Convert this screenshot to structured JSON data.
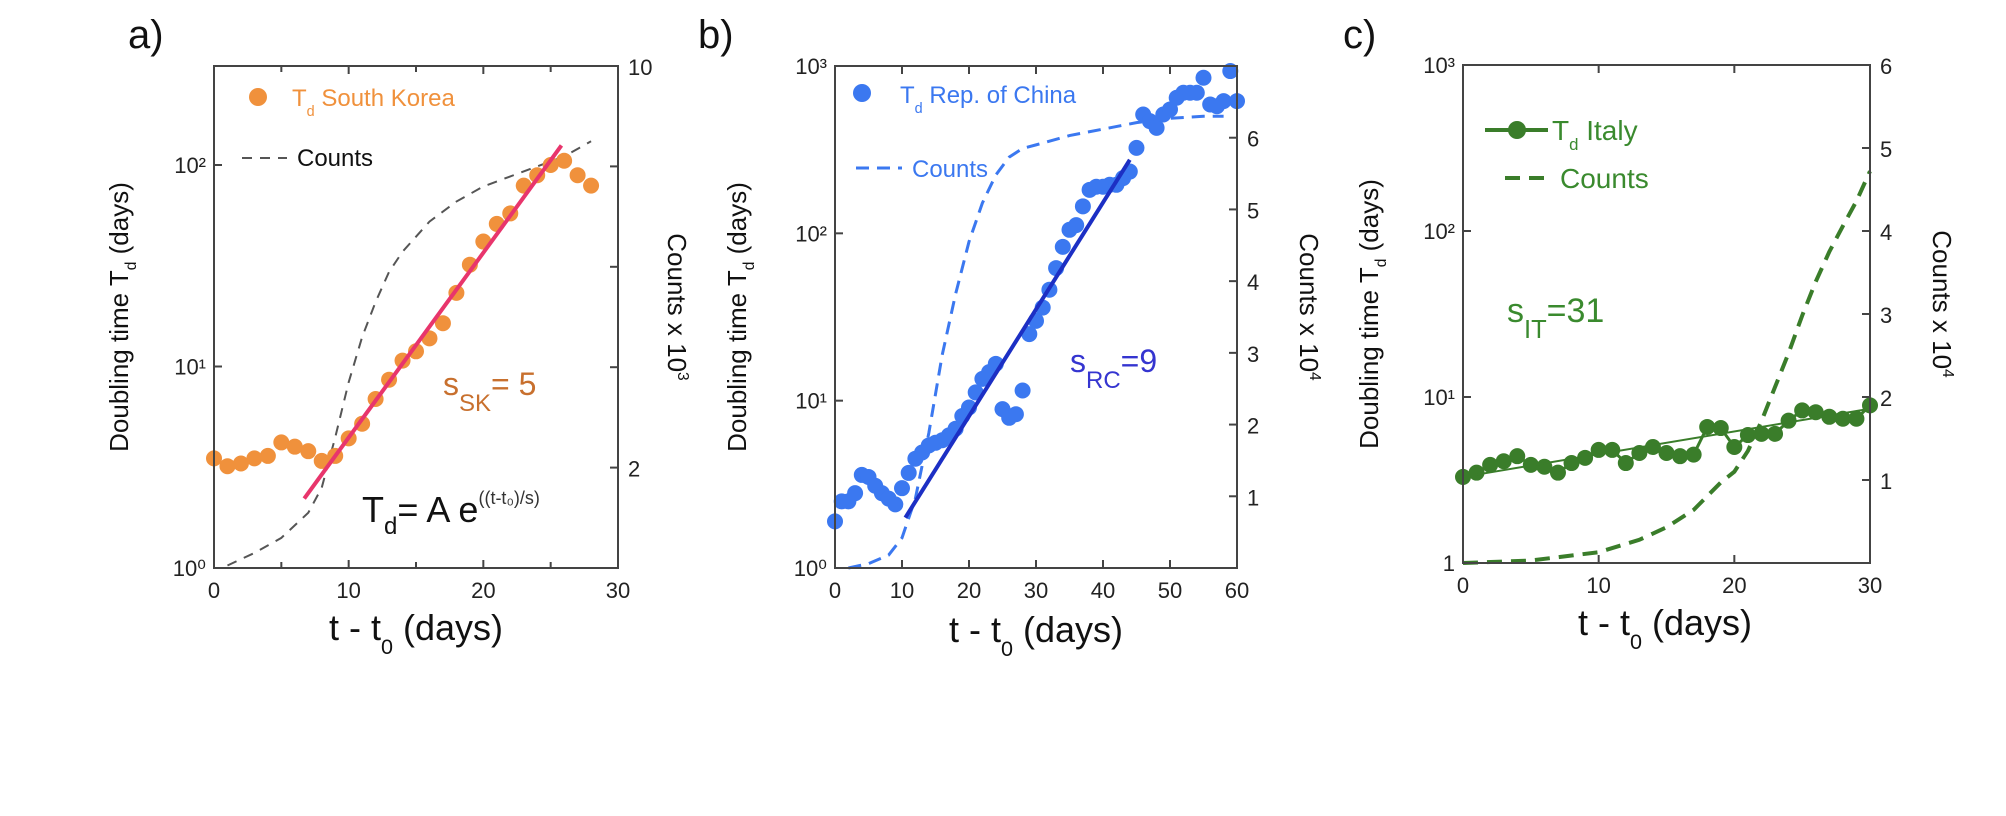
{
  "chart_data": [
    {
      "panel": "a)",
      "type": "scatter",
      "xlim": [
        0,
        30
      ],
      "ylim": [
        1,
        310
      ],
      "yscale": "log",
      "y2lim": [
        0,
        10
      ],
      "x_ticks": [
        {
          "v": 0,
          "label": "0"
        },
        {
          "v": 10,
          "label": "10"
        },
        {
          "v": 20,
          "label": "20"
        },
        {
          "v": 30,
          "label": "30"
        }
      ],
      "x_minor": [
        5,
        15,
        25
      ],
      "y_ticks": [
        {
          "v": 1,
          "label": "10⁰"
        },
        {
          "v": 10,
          "label": "10¹"
        },
        {
          "v": 100,
          "label": "10²"
        }
      ],
      "y2_ticks": [
        {
          "v": 2,
          "label": "2"
        },
        {
          "v": 10,
          "label": "10"
        }
      ],
      "y2_minor": [
        4,
        6,
        8
      ],
      "x_label": {
        "main": "t - t",
        "sub": "0",
        "rest": "  (days)"
      },
      "y_label": {
        "main": "Doubling time T",
        "sub": "d",
        "rest": " (days)"
      },
      "y2_label": {
        "main": "Counts x 10",
        "sup": "3"
      },
      "legend": {
        "td": {
          "main": "T",
          "sub": "d",
          "rest": "  South Korea"
        },
        "counts": "Counts"
      },
      "annotation": {
        "main": "s",
        "sub": "SK",
        "rest": "= 5"
      },
      "formula": {
        "main": "T",
        "sub": "d",
        "rest": "= A e",
        "exp": "((t-t₀)/s)"
      },
      "colors": {
        "points": "#f0913c",
        "fit": "#e8356c",
        "counts": "#555555",
        "text": "#f0913c",
        "annotation": "#c8702e"
      },
      "series": {
        "td": {
          "t": [
            0,
            1,
            2,
            3,
            4,
            5,
            6,
            7,
            8,
            9,
            10,
            11,
            12,
            13,
            14,
            15,
            16,
            17,
            18,
            19,
            20,
            21,
            22,
            23,
            24,
            25,
            26,
            27,
            28
          ],
          "values": [
            3.5,
            3.2,
            3.3,
            3.5,
            3.6,
            4.2,
            4.0,
            3.8,
            3.4,
            3.6,
            4.4,
            5.2,
            6.9,
            8.6,
            10.7,
            11.9,
            13.8,
            16.4,
            23.2,
            32,
            41.7,
            51,
            57.5,
            79,
            89,
            100,
            105,
            89,
            79
          ]
        },
        "fit": {
          "t": [
            6.7,
            25.8
          ],
          "values": [
            2.21,
            125
          ]
        },
        "counts": {
          "t": [
            1,
            3,
            5,
            7,
            8,
            9,
            10,
            11,
            12,
            13,
            14,
            15,
            16,
            18,
            20,
            22,
            24,
            26,
            28
          ],
          "values": [
            0.05,
            0.3,
            0.6,
            1.1,
            1.6,
            2.6,
            3.7,
            4.6,
            5.3,
            5.9,
            6.3,
            6.6,
            6.9,
            7.3,
            7.6,
            7.8,
            8.0,
            8.2,
            8.5
          ]
        }
      }
    },
    {
      "panel": "b)",
      "type": "scatter",
      "xlim": [
        0,
        60
      ],
      "ylim": [
        1,
        1000
      ],
      "yscale": "log",
      "y2lim": [
        0,
        7
      ],
      "x_ticks": [
        {
          "v": 0,
          "label": "0"
        },
        {
          "v": 10,
          "label": "10"
        },
        {
          "v": 20,
          "label": "20"
        },
        {
          "v": 30,
          "label": "30"
        },
        {
          "v": 40,
          "label": "40"
        },
        {
          "v": 50,
          "label": "50"
        },
        {
          "v": 60,
          "label": "60"
        }
      ],
      "x_minor": [],
      "y_ticks": [
        {
          "v": 1,
          "label": "10⁰"
        },
        {
          "v": 10,
          "label": "10¹"
        },
        {
          "v": 100,
          "label": "10²"
        },
        {
          "v": 1000,
          "label": "10³"
        }
      ],
      "y2_ticks": [
        {
          "v": 1,
          "label": "1"
        },
        {
          "v": 2,
          "label": "2"
        },
        {
          "v": 3,
          "label": "3"
        },
        {
          "v": 4,
          "label": "4"
        },
        {
          "v": 5,
          "label": "5"
        },
        {
          "v": 6,
          "label": "6"
        }
      ],
      "y2_minor": [],
      "x_label": {
        "main": "t - t",
        "sub": "0",
        "rest": "  (days)"
      },
      "y_label": {
        "main": "Doubling time T",
        "sub": "d",
        "rest": " (days)"
      },
      "y2_label": {
        "main": "Counts x 10",
        "sup": "4"
      },
      "legend": {
        "td": {
          "main": "T",
          "sub": "d",
          "rest": "  Rep. of China"
        },
        "counts": "Counts"
      },
      "annotation": {
        "main": "s",
        "sub": "RC",
        "rest": "=9"
      },
      "colors": {
        "points": "#3b78f0",
        "fit": "#1c2fc4",
        "counts": "#3b78f0",
        "text": "#3b78f0",
        "annotation": "#3535d0"
      },
      "series": {
        "td": {
          "t": [
            0,
            1,
            2,
            3,
            4,
            5,
            6,
            7,
            8,
            9,
            10,
            11,
            12,
            13,
            14,
            15,
            16,
            17,
            18,
            19,
            20,
            21,
            22,
            23,
            24,
            25,
            26,
            27,
            28,
            29,
            30,
            31,
            32,
            33,
            34,
            35,
            36,
            37,
            38,
            39,
            40,
            41,
            42,
            43,
            44,
            45,
            46,
            47,
            48,
            49,
            50,
            51,
            52,
            53,
            54,
            55,
            56,
            57,
            58,
            59,
            60
          ],
          "values": [
            1.9,
            2.5,
            2.5,
            2.8,
            3.6,
            3.5,
            3.1,
            2.8,
            2.6,
            2.4,
            3.0,
            3.7,
            4.5,
            4.9,
            5.4,
            5.6,
            5.8,
            6.2,
            6.8,
            8.1,
            9.1,
            11.2,
            13.5,
            14.8,
            16.6,
            8.9,
            7.9,
            8.3,
            11.5,
            25,
            30,
            36,
            46,
            62,
            83,
            105,
            112,
            145,
            182,
            190,
            190,
            195,
            195,
            214,
            234,
            324,
            513,
            468,
            427,
            513,
            550,
            646,
            692,
            692,
            692,
            851,
            589,
            575,
            617,
            933,
            617
          ]
        },
        "fit": {
          "t": [
            10.5,
            44
          ],
          "values": [
            2.0,
            275
          ]
        },
        "counts": {
          "t": [
            2,
            5,
            8,
            10,
            12,
            14,
            16,
            18,
            20,
            22,
            24,
            26,
            28,
            30,
            35,
            40,
            45,
            50,
            55,
            58
          ],
          "values": [
            0,
            0.06,
            0.18,
            0.42,
            0.97,
            1.88,
            2.97,
            3.82,
            4.55,
            5.09,
            5.48,
            5.73,
            5.85,
            5.9,
            6.03,
            6.12,
            6.21,
            6.27,
            6.3,
            6.3
          ]
        }
      }
    },
    {
      "panel": "c)",
      "type": "scatter",
      "xlim": [
        0,
        30
      ],
      "ylim": [
        1,
        1000
      ],
      "yscale": "log",
      "y2lim": [
        0,
        6
      ],
      "x_ticks": [
        {
          "v": 0,
          "label": "0"
        },
        {
          "v": 10,
          "label": "10"
        },
        {
          "v": 20,
          "label": "20"
        },
        {
          "v": 30,
          "label": "30"
        }
      ],
      "x_minor": [],
      "y_ticks": [
        {
          "v": 1,
          "label": "1"
        },
        {
          "v": 10,
          "label": "10¹"
        },
        {
          "v": 100,
          "label": "10²"
        },
        {
          "v": 1000,
          "label": "10³"
        }
      ],
      "y2_ticks": [
        {
          "v": 1,
          "label": "1"
        },
        {
          "v": 2,
          "label": "2"
        },
        {
          "v": 3,
          "label": "3"
        },
        {
          "v": 4,
          "label": "4"
        },
        {
          "v": 5,
          "label": "5"
        },
        {
          "v": 6,
          "label": "6"
        }
      ],
      "y2_minor": [],
      "x_label": {
        "main": "t - t",
        "sub": "0",
        "rest": "  (days)"
      },
      "y_label": {
        "main": "Doubling time T",
        "sub": "d",
        "rest": " (days)"
      },
      "y2_label": {
        "main": "Counts x 10",
        "sup": "4"
      },
      "legend": {
        "td": {
          "main": "T",
          "sub": "d",
          "rest": " Italy"
        },
        "counts": "Counts"
      },
      "annotation": {
        "main": "s",
        "sub": "IT",
        "rest": "=31"
      },
      "colors": {
        "points": "#3a7d2a",
        "fit": "#3a7d2a",
        "counts": "#3a7d2a",
        "text": "#3a8a2e",
        "annotation": "#3a8a2e"
      },
      "series": {
        "td": {
          "t": [
            0,
            1,
            2,
            3,
            4,
            5,
            6,
            7,
            8,
            9,
            10,
            11,
            12,
            13,
            14,
            15,
            16,
            17,
            18,
            19,
            20,
            21,
            22,
            23,
            24,
            25,
            26,
            27,
            28,
            29,
            30
          ],
          "values": [
            3.3,
            3.5,
            3.9,
            4.1,
            4.4,
            3.9,
            3.8,
            3.5,
            4.0,
            4.3,
            4.8,
            4.8,
            4.0,
            4.6,
            5.0,
            4.6,
            4.4,
            4.5,
            6.6,
            6.5,
            5.0,
            5.9,
            6.0,
            6.0,
            7.2,
            8.3,
            8.1,
            7.6,
            7.4,
            7.4,
            8.9
          ]
        },
        "fit": {
          "t": [
            0,
            30
          ],
          "values": [
            3.3,
            8.5
          ]
        },
        "counts": {
          "t": [
            0,
            5,
            10,
            13,
            15,
            17,
            19,
            20,
            21,
            22,
            23,
            24,
            25,
            26,
            27,
            28,
            29,
            30
          ],
          "values": [
            0,
            0.03,
            0.13,
            0.28,
            0.43,
            0.64,
            0.97,
            1.1,
            1.35,
            1.71,
            2.12,
            2.53,
            2.98,
            3.39,
            3.75,
            4.06,
            4.36,
            4.72
          ]
        }
      }
    }
  ]
}
